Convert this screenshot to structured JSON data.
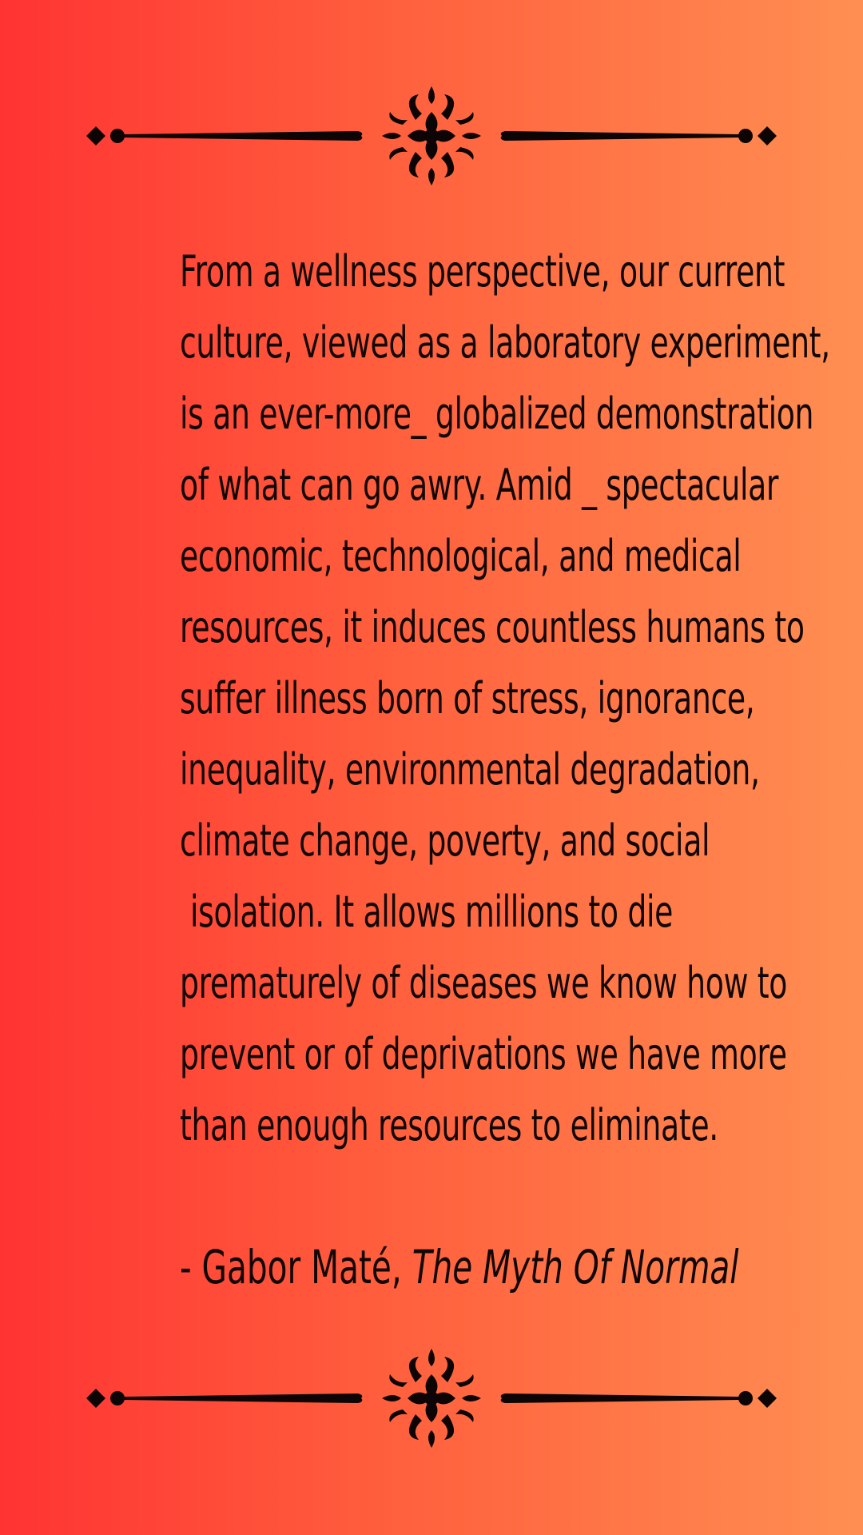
{
  "quote": {
    "lines": [
      "From a wellness perspective, our current",
      "culture, viewed as a laboratory experiment,",
      "is an ever-more_ globalized demonstration",
      "of what can go awry. Amid _ spectacular",
      "economic, technological, and medical",
      "resources, it induces countless humans to",
      "suffer illness born of stress, ignorance,",
      "inequality, environmental degradation,",
      "climate change, poverty, and social",
      "isolation. It allows millions to die",
      "prematurely of diseases we know how to",
      "prevent or of deprivations we have more",
      "than enough resources to eliminate."
    ]
  },
  "attribution": {
    "author": "- Gabor Maté, ",
    "book_title": "The Myth Of Normal"
  },
  "decorations": {
    "top": "ornamental-divider",
    "bottom": "ornamental-divider"
  },
  "colors": {
    "gradient_left": "#ff3333",
    "gradient_right": "#ff8f52",
    "text": "#120707"
  }
}
